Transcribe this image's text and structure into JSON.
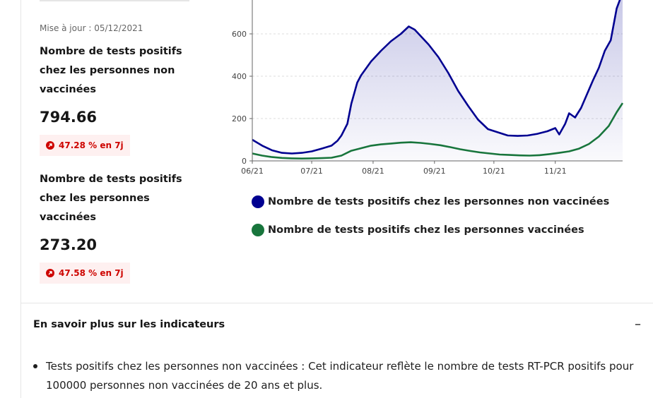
{
  "update_text": "Mise à jour : 05/12/2021",
  "indicators": [
    {
      "title": "Nombre de tests positifs chez les personnes non vaccinées",
      "value": "794.66",
      "change": "47.28 % en 7j"
    },
    {
      "title": "Nombre de tests positifs chez les personnes vaccinées",
      "value": "273.20",
      "change": "47.58 % en 7j"
    }
  ],
  "accordion": {
    "title": "En savoir plus sur les indicateurs",
    "toggle": "–",
    "bullet": "Tests positifs chez les personnes non vaccinées : Cet indicateur reflète le nombre de tests RT-PCR positifs pour 100000 personnes non vaccinées de 20 ans et plus."
  },
  "chart_data": {
    "type": "line",
    "x_tick_labels": [
      "06/21",
      "07/21",
      "08/21",
      "09/21",
      "10/21",
      "11/21"
    ],
    "x_ticks": [
      "2021-06-01",
      "2021-07-01",
      "2021-08-01",
      "2021-09-01",
      "2021-10-01",
      "2021-11-01"
    ],
    "x_range": [
      "2021-06-01",
      "2021-12-05"
    ],
    "ylim": [
      0,
      760
    ],
    "y_ticks": [
      0,
      200,
      400,
      600
    ],
    "grid": true,
    "legend_position": "bottom",
    "series": [
      {
        "name": "Nombre de tests positifs chez les personnes non vaccinées",
        "color": "#000091",
        "area_fill": true,
        "x": [
          "2021-06-01",
          "2021-06-06",
          "2021-06-11",
          "2021-06-16",
          "2021-06-21",
          "2021-06-26",
          "2021-07-01",
          "2021-07-06",
          "2021-07-11",
          "2021-07-14",
          "2021-07-16",
          "2021-07-19",
          "2021-07-21",
          "2021-07-24",
          "2021-07-26",
          "2021-07-31",
          "2021-08-05",
          "2021-08-10",
          "2021-08-15",
          "2021-08-19",
          "2021-08-22",
          "2021-08-25",
          "2021-08-29",
          "2021-09-03",
          "2021-09-08",
          "2021-09-13",
          "2021-09-18",
          "2021-09-23",
          "2021-09-28",
          "2021-10-03",
          "2021-10-08",
          "2021-10-13",
          "2021-10-18",
          "2021-10-23",
          "2021-10-28",
          "2021-11-01",
          "2021-11-03",
          "2021-11-06",
          "2021-11-08",
          "2021-11-11",
          "2021-11-14",
          "2021-11-17",
          "2021-11-20",
          "2021-11-23",
          "2021-11-26",
          "2021-11-29",
          "2021-12-02",
          "2021-12-05"
        ],
        "y": [
          100,
          72,
          50,
          38,
          35,
          38,
          45,
          58,
          72,
          95,
          120,
          175,
          270,
          370,
          405,
          470,
          520,
          565,
          600,
          635,
          620,
          590,
          550,
          490,
          415,
          330,
          260,
          195,
          150,
          135,
          120,
          118,
          120,
          128,
          140,
          155,
          125,
          175,
          225,
          205,
          250,
          315,
          380,
          440,
          520,
          570,
          720,
          795
        ]
      },
      {
        "name": "Nombre de tests positifs chez les personnes vaccinées",
        "color": "#18753c",
        "area_fill": false,
        "x": [
          "2021-06-01",
          "2021-06-06",
          "2021-06-11",
          "2021-06-16",
          "2021-06-21",
          "2021-06-26",
          "2021-07-01",
          "2021-07-06",
          "2021-07-11",
          "2021-07-16",
          "2021-07-21",
          "2021-07-26",
          "2021-07-31",
          "2021-08-05",
          "2021-08-10",
          "2021-08-15",
          "2021-08-20",
          "2021-08-25",
          "2021-08-30",
          "2021-09-04",
          "2021-09-09",
          "2021-09-14",
          "2021-09-19",
          "2021-09-24",
          "2021-09-29",
          "2021-10-04",
          "2021-10-09",
          "2021-10-14",
          "2021-10-19",
          "2021-10-24",
          "2021-10-29",
          "2021-11-03",
          "2021-11-08",
          "2021-11-13",
          "2021-11-18",
          "2021-11-23",
          "2021-11-28",
          "2021-12-02",
          "2021-12-05"
        ],
        "y": [
          35,
          25,
          18,
          14,
          12,
          11,
          12,
          13,
          15,
          25,
          48,
          60,
          72,
          78,
          82,
          86,
          88,
          85,
          80,
          74,
          65,
          55,
          47,
          40,
          35,
          30,
          28,
          26,
          25,
          27,
          32,
          38,
          45,
          58,
          80,
          115,
          165,
          230,
          273
        ]
      }
    ]
  }
}
